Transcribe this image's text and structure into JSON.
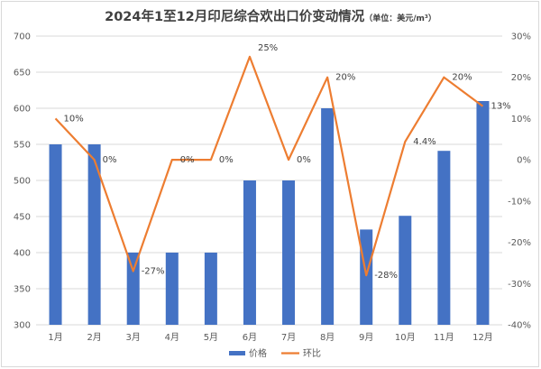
{
  "chart_data": {
    "type": "bar+line",
    "title": "2024年1至12月印尼综合欢出口价变动情况",
    "subtitle": "（单位：美元/m³）",
    "categories": [
      "1月",
      "2月",
      "3月",
      "4月",
      "5月",
      "6月",
      "7月",
      "8月",
      "9月",
      "10月",
      "11月",
      "12月"
    ],
    "series": [
      {
        "name": "价格",
        "type": "bar",
        "axis": "left",
        "color": "#4472c4",
        "values": [
          550,
          550,
          400,
          400,
          400,
          500,
          500,
          600,
          432,
          451,
          541,
          610
        ]
      },
      {
        "name": "环比",
        "type": "line",
        "axis": "right",
        "color": "#ed7d31",
        "values": [
          10,
          0,
          -27,
          0,
          0,
          25,
          0,
          20,
          -28,
          4.4,
          20,
          13
        ],
        "labels": [
          "10%",
          "0%",
          "-27%",
          "0%",
          "0%",
          "25%",
          "0%",
          "20%",
          "-28%",
          "4.4%",
          "20%",
          "13%"
        ]
      }
    ],
    "y_left": {
      "range": [
        300,
        700
      ],
      "ticks": [
        "300",
        "350",
        "400",
        "450",
        "500",
        "550",
        "600",
        "650",
        "700"
      ]
    },
    "y_right": {
      "range": [
        -40,
        30
      ],
      "ticks": [
        "-40%",
        "-30%",
        "-20%",
        "-10%",
        "0%",
        "10%",
        "20%",
        "30%"
      ]
    },
    "grid": "horizontal",
    "legend_position": "bottom"
  }
}
